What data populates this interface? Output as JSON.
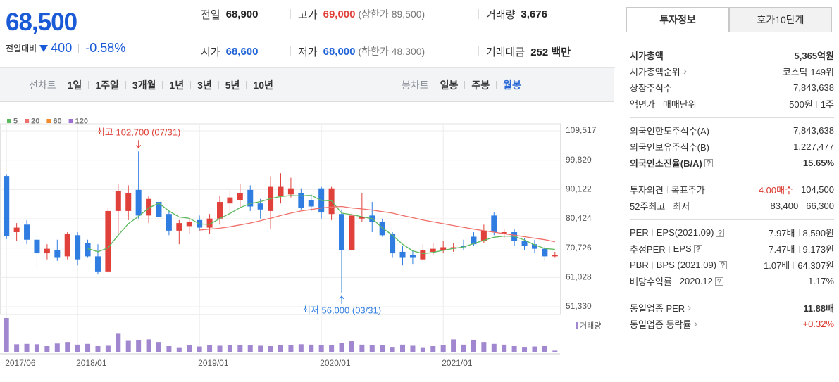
{
  "summary": {
    "price": "68,500",
    "change_label": "전일대비",
    "change": "400",
    "change_rate": "-0.58%"
  },
  "quote": [
    {
      "label": "전일",
      "value": "68,900"
    },
    {
      "label": "고가",
      "value": "69,000",
      "color": "#e0413a",
      "note": "(상한가 89,500)"
    },
    {
      "label": "거래량",
      "value": "3,676"
    },
    {
      "label": "시가",
      "value": "68,600",
      "color": "#1f63d6"
    },
    {
      "label": "저가",
      "value": "68,000",
      "color": "#1f63d6",
      "note": "(하한가 48,300)"
    },
    {
      "label": "거래대금",
      "value": "252 백만"
    }
  ],
  "chart_tabs": {
    "line_label": "선차트",
    "line_periods": [
      {
        "label": "1일"
      },
      {
        "label": "1주일"
      },
      {
        "label": "3개월"
      },
      {
        "label": "1년"
      },
      {
        "label": "3년"
      },
      {
        "label": "5년"
      },
      {
        "label": "10년"
      }
    ],
    "candle_label": "봉차트",
    "candle_periods": [
      {
        "label": "일봉"
      },
      {
        "label": "주봉"
      },
      {
        "label": "월봉",
        "active": true
      }
    ]
  },
  "chart_data": {
    "type": "candlestick",
    "categories": [
      "2017/06",
      null,
      null,
      null,
      null,
      null,
      null,
      "2018/01",
      null,
      null,
      null,
      null,
      null,
      null,
      null,
      null,
      null,
      null,
      null,
      "2019/01",
      null,
      null,
      null,
      null,
      null,
      null,
      null,
      null,
      null,
      null,
      null,
      "2020/01",
      null,
      null,
      null,
      null,
      null,
      null,
      null,
      null,
      null,
      null,
      null,
      "2021/01",
      null,
      null,
      null,
      null,
      null,
      null,
      null,
      null,
      null,
      null,
      null
    ],
    "candles": {
      "up_color": "#e0413a",
      "down_color": "#2f7de1",
      "open": [
        94600,
        76000,
        78500,
        73500,
        69000,
        70000,
        68000,
        75000,
        72500,
        68000,
        63000,
        83000,
        83000,
        90000,
        81500,
        86000,
        82000,
        76500,
        78000,
        80000,
        77500,
        80500,
        85500,
        86500,
        90000,
        85500,
        83000,
        88000,
        88500,
        89000,
        86500,
        90500,
        82000,
        82000,
        70000,
        80500,
        81500,
        79500,
        75500,
        69500,
        68500,
        67000,
        69500,
        70000,
        70500,
        71500,
        74500,
        73000,
        81500,
        75500,
        76000,
        73000,
        72000,
        70500,
        68000
      ],
      "high": [
        95000,
        79000,
        80000,
        75000,
        72000,
        73500,
        76000,
        76000,
        73500,
        72000,
        84000,
        92000,
        91500,
        102700,
        88000,
        88000,
        83000,
        80000,
        80500,
        81500,
        82000,
        88000,
        90000,
        92000,
        91500,
        87000,
        94500,
        95500,
        94000,
        90500,
        88500,
        91000,
        91000,
        83500,
        82500,
        89000,
        86000,
        80500,
        76000,
        71500,
        70000,
        72000,
        72500,
        73000,
        72500,
        73500,
        76000,
        78500,
        82500,
        77000,
        77000,
        74000,
        73500,
        71500,
        69500
      ],
      "low": [
        73700,
        73000,
        72000,
        64000,
        67000,
        66500,
        67000,
        65000,
        67500,
        62000,
        62500,
        75000,
        80000,
        80500,
        79000,
        79500,
        75000,
        72000,
        75500,
        76500,
        75500,
        78500,
        82000,
        84000,
        83000,
        80500,
        77000,
        85500,
        87500,
        83500,
        83000,
        80500,
        80000,
        56000,
        69500,
        79500,
        76000,
        74500,
        67500,
        65000,
        65500,
        66500,
        68500,
        69000,
        69500,
        70000,
        71500,
        72500,
        75000,
        74000,
        71500,
        70000,
        69000,
        66500,
        67500
      ],
      "close": [
        74800,
        77500,
        73500,
        69000,
        70500,
        67500,
        75500,
        67000,
        68000,
        63000,
        83000,
        89500,
        89000,
        81500,
        87000,
        81000,
        76500,
        79000,
        79500,
        77500,
        80500,
        86000,
        87500,
        89000,
        84500,
        83500,
        91000,
        91000,
        90500,
        84000,
        84500,
        82500,
        90500,
        70000,
        81500,
        81000,
        79500,
        75000,
        69000,
        67500,
        67500,
        70000,
        70500,
        71000,
        71000,
        71000,
        72000,
        76500,
        76000,
        76000,
        73000,
        71500,
        70500,
        68000,
        68500
      ]
    },
    "moving_averages": [
      {
        "name": "5",
        "color": "#5cb85c",
        "values": [
          null,
          null,
          null,
          null,
          null,
          null,
          null,
          null,
          70600,
          69500,
          70800,
          75000,
          78800,
          81200,
          84000,
          85600,
          83000,
          81000,
          80600,
          78700,
          78600,
          80500,
          82200,
          84100,
          85500,
          86100,
          87100,
          87800,
          88100,
          88000,
          88200,
          86500,
          86400,
          82300,
          81800,
          81100,
          80500,
          77400,
          75000,
          72000,
          69800,
          68900,
          69300,
          70000,
          70600,
          71100,
          72200,
          73300,
          74300,
          74700,
          74600,
          73400,
          71800,
          70600,
          70300
        ]
      },
      {
        "name": "20",
        "color": "#ef6f6a",
        "values": [
          null,
          null,
          null,
          null,
          null,
          null,
          null,
          null,
          null,
          null,
          null,
          null,
          null,
          null,
          null,
          null,
          null,
          null,
          null,
          76700,
          77000,
          77300,
          77800,
          78400,
          79000,
          79800,
          80600,
          81500,
          82300,
          83000,
          83500,
          84000,
          84300,
          84500,
          84000,
          83700,
          83300,
          82800,
          82300,
          81500,
          80800,
          80000,
          79400,
          78800,
          78200,
          77600,
          77000,
          76500,
          76000,
          75500,
          75000,
          74500,
          74000,
          73500,
          72800
        ]
      },
      {
        "name": "60",
        "color": "#f08c2c",
        "values": [
          null,
          null,
          null,
          null,
          null,
          null,
          null,
          null,
          null,
          null,
          null,
          null,
          null,
          null,
          null,
          null,
          null,
          null,
          null,
          null,
          null,
          null,
          null,
          null,
          null,
          null,
          null,
          null,
          null,
          null,
          null,
          null,
          null,
          null,
          null,
          null,
          null,
          null,
          null,
          null,
          null,
          null,
          null,
          null,
          null,
          null,
          null,
          null,
          null,
          null,
          null,
          null,
          null,
          null,
          null
        ]
      },
      {
        "name": "120",
        "color": "#9c6fd0",
        "values": [
          null,
          null,
          null,
          null,
          null,
          null,
          null,
          null,
          null,
          null,
          null,
          null,
          null,
          null,
          null,
          null,
          null,
          null,
          null,
          null,
          null,
          null,
          null,
          null,
          null,
          null,
          null,
          null,
          null,
          null,
          null,
          null,
          null,
          null,
          null,
          null,
          null,
          null,
          null,
          null,
          null,
          null,
          null,
          null,
          null,
          null,
          null,
          null,
          null,
          null,
          null,
          null,
          null,
          null,
          null
        ]
      }
    ],
    "volume": {
      "name": "거래량",
      "color": "#a187d0",
      "values": [
        900000,
        200000,
        210000,
        200000,
        150000,
        220000,
        260000,
        190000,
        210000,
        150000,
        160000,
        480000,
        290000,
        300000,
        330000,
        260000,
        150000,
        120000,
        180000,
        140000,
        170000,
        160000,
        170000,
        180000,
        170000,
        160000,
        150000,
        170000,
        180000,
        200000,
        190000,
        170000,
        180000,
        240000,
        280000,
        190000,
        180000,
        170000,
        130000,
        190000,
        160000,
        120000,
        150000,
        170000,
        330000,
        190000,
        320000,
        260000,
        210000,
        190000,
        150000,
        130000,
        140000,
        150000,
        30000
      ]
    },
    "annotations": [
      {
        "text": "최고 102,700 (07/31)",
        "at": "high",
        "color": "#e0413a"
      },
      {
        "text": "최저 56,000 (03/31)",
        "at": "low",
        "color": "#2f7de1"
      }
    ],
    "ylim": [
      48770,
      111845
    ],
    "yticks": [
      {
        "value": 51330,
        "label": "51,330"
      },
      {
        "value": 61028,
        "label": "61,028"
      },
      {
        "value": 70726,
        "label": "70,726"
      },
      {
        "value": 80424,
        "label": "80,424"
      },
      {
        "value": 90122,
        "label": "90,122"
      },
      {
        "value": 99820,
        "label": "99,820"
      },
      {
        "value": 109517,
        "label": "109,517"
      }
    ],
    "grid": true
  },
  "invest_panel": {
    "tabs": [
      {
        "label": "투자정보",
        "active": true
      },
      {
        "label": "호가10단계",
        "active": false
      }
    ],
    "sections": [
      [
        {
          "label": [
            "시가총액"
          ],
          "value": [
            "5,365억원"
          ],
          "bold": true
        },
        {
          "label": [
            "시가총액순위"
          ],
          "arrow": true,
          "value": [
            "코스닥 149위"
          ]
        },
        {
          "label": [
            "상장주식수"
          ],
          "value": [
            "7,843,638"
          ]
        },
        {
          "label": [
            "액면가",
            "매매단위"
          ],
          "value": [
            "500원",
            "1주"
          ]
        }
      ],
      [
        {
          "label": [
            "외국인한도주식수(A)"
          ],
          "value": [
            "7,843,638"
          ]
        },
        {
          "label": [
            "외국인보유주식수(B)"
          ],
          "value": [
            "1,227,477"
          ]
        },
        {
          "label": [
            "외국인소진율(B/A)"
          ],
          "help": true,
          "value": [
            "15.65%"
          ],
          "bold": true
        }
      ],
      [
        {
          "label": [
            "투자의견",
            "목표주가"
          ],
          "value": [
            "4.00매수",
            "104,500"
          ],
          "value_colors": [
            "#d9342b",
            "#333333"
          ]
        },
        {
          "label": [
            "52주최고",
            "최저"
          ],
          "value": [
            "83,400",
            "66,300"
          ]
        }
      ],
      [
        {
          "label": [
            "PER",
            "EPS(2021.09)"
          ],
          "help": true,
          "value": [
            "7.97배",
            "8,590원"
          ]
        },
        {
          "label": [
            "추정PER",
            "EPS"
          ],
          "help": true,
          "value": [
            "7.47배",
            "9,173원"
          ]
        },
        {
          "label": [
            "PBR",
            "BPS (2021.09)"
          ],
          "help": true,
          "value": [
            "1.07배",
            "64,307원"
          ]
        },
        {
          "label": [
            "배당수익률",
            "2020.12"
          ],
          "help": true,
          "value": [
            "1.17%"
          ]
        }
      ],
      [
        {
          "label": [
            "동일업종 PER"
          ],
          "arrow": true,
          "value": [
            "11.88배"
          ],
          "bold_value": true
        },
        {
          "label": [
            "동일업종 등락률"
          ],
          "arrow": true,
          "value": [
            "+0.32%"
          ],
          "value_colors": [
            "#d9342b"
          ]
        }
      ]
    ]
  }
}
